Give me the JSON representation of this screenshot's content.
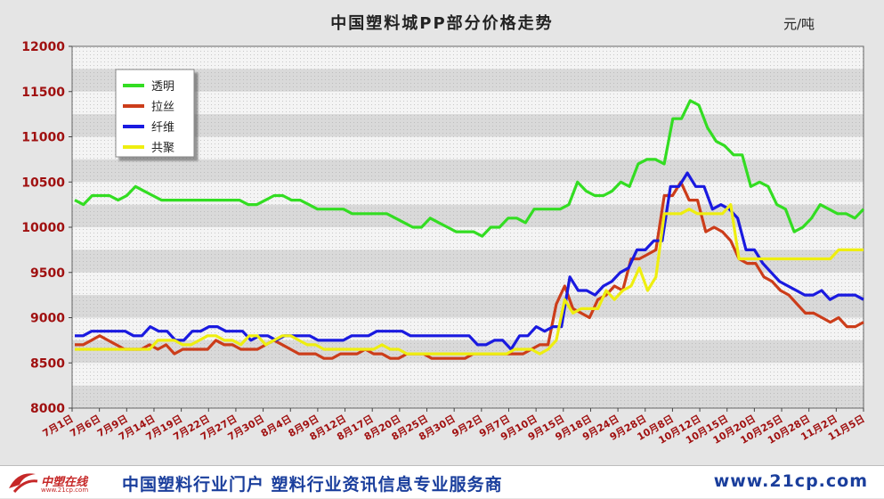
{
  "header": {
    "title": "中国塑料城PP部分价格走势",
    "unit": "元/吨"
  },
  "footer": {
    "logo_text": "中塑在线",
    "logo_url": "www.21cp.com",
    "slogan": "中国塑料行业门户 塑料行业资讯信息专业服务商",
    "url": "www.21cp.com"
  },
  "colors": {
    "透明": "#33dd22",
    "拉丝": "#cc3d1a",
    "纤维": "#1a1ae0",
    "共聚": "#eeee10"
  },
  "chart_data": {
    "type": "line",
    "title": "中国塑料城PP部分价格走势",
    "ylabel": "元/吨",
    "ylim": [
      8000,
      12000
    ],
    "yticks": [
      8000,
      8500,
      9000,
      9500,
      10000,
      10500,
      11000,
      11500,
      12000
    ],
    "grid": true,
    "legend": "top-left",
    "xtick_labels": [
      "7月1日",
      "7月6日",
      "7月9日",
      "7月14日",
      "7月19日",
      "7月22日",
      "7月27日",
      "7月30日",
      "8月4日",
      "8月9日",
      "8月12日",
      "8月17日",
      "8月20日",
      "8月25日",
      "8月30日",
      "9月2日",
      "9月7日",
      "9月10日",
      "9月15日",
      "9月18日",
      "9月24日",
      "9月28日",
      "10月8日",
      "10月12日",
      "10月15日",
      "10月20日",
      "10月25日",
      "10月28日",
      "11月2日",
      "11月5日"
    ],
    "series": [
      {
        "name": "透明",
        "values": [
          10300,
          10250,
          10350,
          10350,
          10350,
          10300,
          10350,
          10450,
          10400,
          10350,
          10300,
          10300,
          10300,
          10300,
          10300,
          10300,
          10300,
          10300,
          10300,
          10300,
          10250,
          10250,
          10300,
          10350,
          10350,
          10300,
          10300,
          10250,
          10200,
          10200,
          10200,
          10200,
          10150,
          10150,
          10150,
          10150,
          10150,
          10100,
          10050,
          10000,
          10000,
          10100,
          10050,
          10000,
          9950,
          9950,
          9950,
          9900,
          10000,
          10000,
          10100,
          10100,
          10050,
          10200,
          10200,
          10200,
          10200,
          10250,
          10500,
          10400,
          10350,
          10350,
          10400,
          10500,
          10450,
          10700,
          10750,
          10750,
          10700,
          11200,
          11200,
          11400,
          11350,
          11100,
          10950,
          10900,
          10800,
          10800,
          10450,
          10500,
          10450,
          10250,
          10200,
          9950,
          10000,
          10100,
          10250,
          10200,
          10150,
          10150,
          10100,
          10200
        ]
      },
      {
        "name": "拉丝",
        "values": [
          8700,
          8700,
          8750,
          8800,
          8750,
          8700,
          8650,
          8650,
          8650,
          8700,
          8650,
          8700,
          8600,
          8650,
          8650,
          8650,
          8650,
          8750,
          8700,
          8700,
          8650,
          8650,
          8650,
          8700,
          8750,
          8700,
          8650,
          8600,
          8600,
          8600,
          8550,
          8550,
          8600,
          8600,
          8600,
          8650,
          8600,
          8600,
          8550,
          8550,
          8600,
          8600,
          8600,
          8550,
          8550,
          8550,
          8550,
          8550,
          8600,
          8600,
          8600,
          8600,
          8600,
          8600,
          8600,
          8650,
          8700,
          8700,
          9150,
          9350,
          9100,
          9050,
          9000,
          9200,
          9250,
          9350,
          9300,
          9650,
          9650,
          9700,
          9750,
          10350,
          10350,
          10500,
          10300,
          10300,
          9950,
          10000,
          9950,
          9850,
          9650,
          9600,
          9600,
          9450,
          9400,
          9300,
          9250,
          9150,
          9050,
          9050,
          9000,
          8950,
          9000,
          8900,
          8900,
          8950
        ]
      },
      {
        "name": "纤维",
        "values": [
          8800,
          8800,
          8850,
          8850,
          8850,
          8850,
          8850,
          8800,
          8800,
          8900,
          8850,
          8850,
          8750,
          8750,
          8850,
          8850,
          8900,
          8900,
          8850,
          8850,
          8850,
          8750,
          8800,
          8800,
          8750,
          8800,
          8800,
          8800,
          8800,
          8750,
          8750,
          8750,
          8750,
          8800,
          8800,
          8800,
          8850,
          8850,
          8850,
          8850,
          8800,
          8800,
          8800,
          8800,
          8800,
          8800,
          8800,
          8800,
          8700,
          8700,
          8750,
          8750,
          8650,
          8800,
          8800,
          8900,
          8850,
          8900,
          8900,
          9450,
          9300,
          9300,
          9250,
          9350,
          9400,
          9500,
          9550,
          9750,
          9750,
          9850,
          9850,
          10450,
          10450,
          10600,
          10450,
          10450,
          10200,
          10250,
          10200,
          10100,
          9750,
          9750,
          9600,
          9500,
          9400,
          9350,
          9300,
          9250,
          9250,
          9300,
          9200,
          9250,
          9250,
          9250,
          9200
        ]
      },
      {
        "name": "共聚",
        "values": [
          8650,
          8650,
          8650,
          8650,
          8650,
          8650,
          8650,
          8650,
          8650,
          8650,
          8750,
          8750,
          8750,
          8700,
          8700,
          8750,
          8800,
          8800,
          8750,
          8750,
          8700,
          8800,
          8800,
          8700,
          8750,
          8800,
          8800,
          8750,
          8700,
          8700,
          8650,
          8650,
          8650,
          8650,
          8650,
          8650,
          8650,
          8700,
          8650,
          8650,
          8600,
          8600,
          8600,
          8600,
          8600,
          8600,
          8600,
          8600,
          8600,
          8600,
          8600,
          8600,
          8600,
          8650,
          8650,
          8650,
          8600,
          8650,
          8750,
          9200,
          9050,
          9100,
          9100,
          9100,
          9300,
          9200,
          9300,
          9350,
          9550,
          9300,
          9450,
          10150,
          10150,
          10150,
          10200,
          10150,
          10150,
          10150,
          10150,
          10250,
          9650,
          9650,
          9650,
          9650,
          9650,
          9650,
          9650,
          9650,
          9650,
          9650,
          9650,
          9650,
          9750,
          9750,
          9750,
          9750
        ]
      }
    ]
  }
}
